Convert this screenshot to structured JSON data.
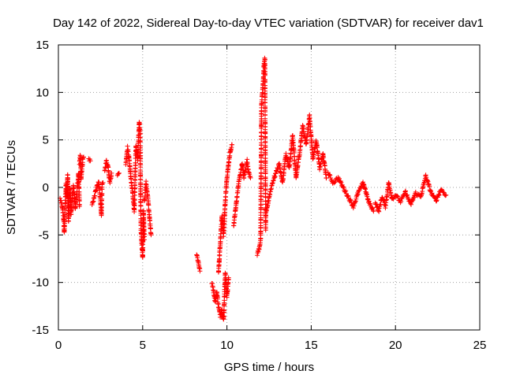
{
  "chart_data": {
    "type": "scatter",
    "title": "Day 142 of 2022, Sidereal Day-to-day VTEC variation (SDTVAR) for receiver dav1",
    "xlabel": "GPS time / hours",
    "ylabel": "SDTVAR / TECUs",
    "xlim": [
      0,
      25
    ],
    "ylim": [
      -15,
      15
    ],
    "x_ticks": [
      0,
      5,
      10,
      15,
      20,
      25
    ],
    "y_ticks": [
      -15,
      -10,
      -5,
      0,
      5,
      10,
      15
    ],
    "x_tick_labels": [
      "0",
      "5",
      "10",
      "15",
      "20",
      "25"
    ],
    "y_tick_labels": [
      "-15",
      "-10",
      "-5",
      "0",
      "5",
      "10",
      "15"
    ],
    "grid": true,
    "marker": "+",
    "color": "#ff0000",
    "segments": [
      {
        "x": [
          0.1,
          0.2,
          0.3,
          0.35,
          0.4,
          0.45,
          0.5,
          0.55,
          0.6,
          0.65,
          0.7,
          0.75,
          0.8,
          0.9,
          1.0,
          1.1,
          1.2,
          1.25
        ],
        "y": [
          -1.2,
          -1.8,
          -3.0,
          -4.8,
          -2.0,
          0.5,
          -1.0,
          1.3,
          -3.5,
          -1.5,
          0.0,
          -2.8,
          -1.6,
          0.2,
          -2.2,
          -0.5,
          1.5,
          -2.0
        ]
      },
      {
        "x": [
          1.25,
          1.3,
          1.35,
          1.4,
          1.45,
          1.5
        ],
        "y": [
          2.5,
          3.4,
          1.0,
          2.0,
          3.0,
          3.2
        ]
      },
      {
        "x": [
          1.8,
          1.9
        ],
        "y": [
          3.0,
          2.8
        ]
      },
      {
        "x": [
          2.0,
          2.1,
          2.2,
          2.3,
          2.4,
          2.5,
          2.55,
          2.6,
          2.65
        ],
        "y": [
          -1.8,
          -1.2,
          -0.5,
          0.2,
          0.5,
          -1.5,
          -3.0,
          0.3,
          0.5
        ]
      },
      {
        "x": [
          2.75,
          2.85,
          2.95,
          3.05,
          3.15
        ],
        "y": [
          1.8,
          2.8,
          2.2,
          0.5,
          1.5
        ]
      },
      {
        "x": [
          3.5,
          3.6
        ],
        "y": [
          1.2,
          1.5
        ]
      },
      {
        "x": [
          4.0,
          4.1,
          4.2,
          4.3,
          4.4,
          4.5,
          4.6,
          4.7,
          4.8,
          4.85,
          4.9,
          4.95,
          5.0,
          5.05,
          5.1
        ],
        "y": [
          2.5,
          4.2,
          3.0,
          1.0,
          -0.5,
          -2.5,
          4.5,
          3.0,
          7.0,
          5.5,
          -4.5,
          -6.0,
          -7.5,
          -2.5,
          -5.5
        ]
      },
      {
        "x": [
          5.1,
          5.2,
          5.3,
          5.4,
          5.5
        ],
        "y": [
          -1.5,
          0.5,
          -1.0,
          -3.0,
          -5.0
        ]
      },
      {
        "x": [
          8.2,
          8.3,
          8.4
        ],
        "y": [
          -7.0,
          -7.8,
          -8.8
        ]
      },
      {
        "x": [
          9.1,
          9.2,
          9.3,
          9.4,
          9.5,
          9.6,
          9.7,
          9.8,
          9.9,
          10.0,
          10.1
        ],
        "y": [
          -10.0,
          -10.8,
          -12.0,
          -11.0,
          -12.5,
          -13.5,
          -12.8,
          -14.0,
          -9.0,
          -11.5,
          -9.5
        ]
      },
      {
        "x": [
          9.5,
          9.6,
          9.7,
          9.8,
          9.9,
          10.0,
          10.1,
          10.2,
          10.3
        ],
        "y": [
          -9.0,
          -6.0,
          -3.0,
          -5.0,
          -1.5,
          1.0,
          2.5,
          3.8,
          4.5
        ]
      },
      {
        "x": [
          10.4,
          10.5,
          10.6,
          10.7,
          10.8,
          10.9,
          11.0,
          11.1,
          11.2,
          11.3,
          11.4
        ],
        "y": [
          -4.0,
          -2.5,
          -1.0,
          0.5,
          1.5,
          2.5,
          1.0,
          2.0,
          2.8,
          1.5,
          1.0
        ]
      },
      {
        "x": [
          11.8,
          11.9,
          12.0,
          12.05,
          12.1,
          12.15,
          12.2,
          12.25,
          12.3
        ],
        "y": [
          -7.0,
          -6.5,
          -5.5,
          8.5,
          10.0,
          11.0,
          13.0,
          13.6,
          -4.5
        ]
      },
      {
        "x": [
          12.3,
          12.5,
          12.7,
          12.9,
          13.1,
          13.3,
          13.5,
          13.7,
          13.9,
          14.1,
          14.3,
          14.5,
          14.7,
          14.9,
          15.1,
          15.3,
          15.5,
          15.7,
          15.9
        ],
        "y": [
          -3.0,
          -1.0,
          0.5,
          1.5,
          2.5,
          0.5,
          3.5,
          2.0,
          5.5,
          1.0,
          3.5,
          6.5,
          4.5,
          7.5,
          3.0,
          5.0,
          2.0,
          3.5,
          1.0
        ]
      },
      {
        "x": [
          16.0,
          16.3,
          16.6,
          16.9,
          17.2,
          17.5,
          17.8,
          18.1,
          18.4,
          18.7
        ],
        "y": [
          1.5,
          0.5,
          1.0,
          0.0,
          -1.0,
          -2.0,
          -0.5,
          0.5,
          -1.5,
          -2.5
        ]
      },
      {
        "x": [
          18.8,
          19.0,
          19.2,
          19.4,
          19.6,
          19.8,
          20.0,
          20.3,
          20.6,
          20.9,
          21.2,
          21.5,
          21.8,
          22.1,
          22.4,
          22.7,
          23.0
        ],
        "y": [
          -1.5,
          -2.5,
          -1.0,
          -2.0,
          0.5,
          -1.2,
          -0.8,
          -1.5,
          -0.5,
          -1.8,
          -0.6,
          -1.0,
          1.2,
          -0.5,
          -1.4,
          -0.2,
          -0.8
        ]
      }
    ]
  }
}
